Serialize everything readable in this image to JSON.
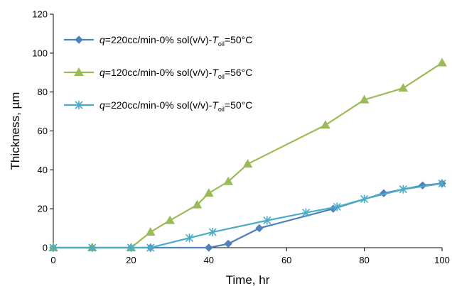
{
  "chart_data": {
    "type": "line",
    "xlabel": "Time, hr",
    "ylabel": "Thickness, µm",
    "xlim": [
      0,
      100
    ],
    "ylim": [
      0,
      120
    ],
    "xticks": [
      "0",
      "20",
      "40",
      "60",
      "80",
      "100"
    ],
    "yticks": [
      "0",
      "20",
      "40",
      "60",
      "80",
      "100",
      "120"
    ],
    "grid": false,
    "legend_position": "top-left",
    "series": [
      {
        "legend": {
          "q": "q",
          "rest": "=220cc/min-0% sol(v/v)-",
          "T": "T",
          "sub": "oil",
          "end": "=50°C"
        },
        "color": "#4f81bd",
        "marker": "diamond",
        "x": [
          0,
          10,
          20,
          25,
          40,
          45,
          53,
          72,
          85,
          95,
          100
        ],
        "y": [
          0,
          0,
          0,
          0,
          0,
          2,
          10,
          20,
          28,
          32,
          33
        ]
      },
      {
        "legend": {
          "q": "q",
          "rest": "=120cc/min-0% sol(v/v)-",
          "T": "T",
          "sub": "oil",
          "end": "=56°C"
        },
        "color": "#9bbb59",
        "marker": "triangle",
        "x": [
          0,
          10,
          20,
          25,
          30,
          37,
          40,
          45,
          50,
          70,
          80,
          90,
          100
        ],
        "y": [
          0,
          0,
          0,
          8,
          14,
          22,
          28,
          34,
          43,
          63,
          76,
          82,
          95
        ]
      },
      {
        "legend": {
          "q": "q",
          "rest": "=220cc/min-0% sol(v/v)-",
          "T": "T",
          "sub": "oil",
          "end": "=50°C"
        },
        "color": "#4bacc6",
        "marker": "star",
        "x": [
          0,
          10,
          20,
          25,
          35,
          41,
          55,
          65,
          73,
          80,
          90,
          100
        ],
        "y": [
          0,
          0,
          0,
          0,
          5,
          8,
          14,
          18,
          21,
          25,
          30,
          33
        ]
      }
    ]
  }
}
